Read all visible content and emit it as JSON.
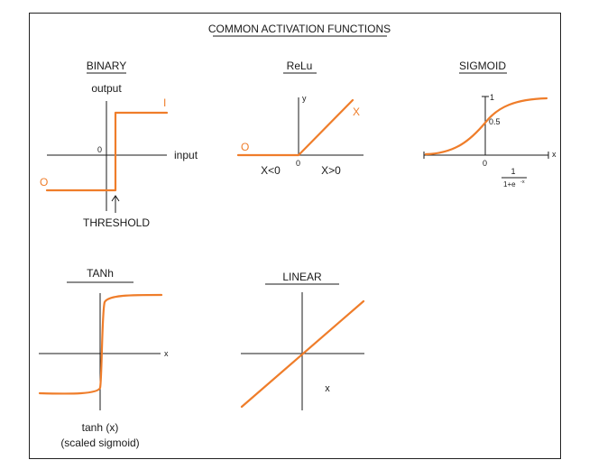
{
  "title": "COMMON ACTIVATION FUNCTIONS",
  "colors": {
    "curve": "#ef7d2a",
    "axis": "#1a1a1a",
    "border": "#222222"
  },
  "panels": {
    "binary": {
      "heading": "BINARY",
      "y_label": "output",
      "x_label": "input",
      "origin": "0",
      "high_label": "I",
      "low_label": "O",
      "threshold_label": "THRESHOLD"
    },
    "relu": {
      "heading": "ReLu",
      "y_label": "y",
      "origin": "0",
      "left_label": "O",
      "right_label": "X",
      "neg_region": "X<0",
      "pos_region": "X>0"
    },
    "sigmoid": {
      "heading": "SIGMOID",
      "x_label": "x",
      "origin": "0",
      "tick_top": "1",
      "tick_mid": "0.5",
      "formula_num": "1",
      "formula_den": "1+e",
      "formula_exp": "-x"
    },
    "tanh": {
      "heading": "TANh",
      "x_label": "x",
      "caption_1": "tanh (x)",
      "caption_2": "(scaled sigmoid)"
    },
    "linear": {
      "heading": "LINEAR",
      "x_label": "x"
    }
  }
}
